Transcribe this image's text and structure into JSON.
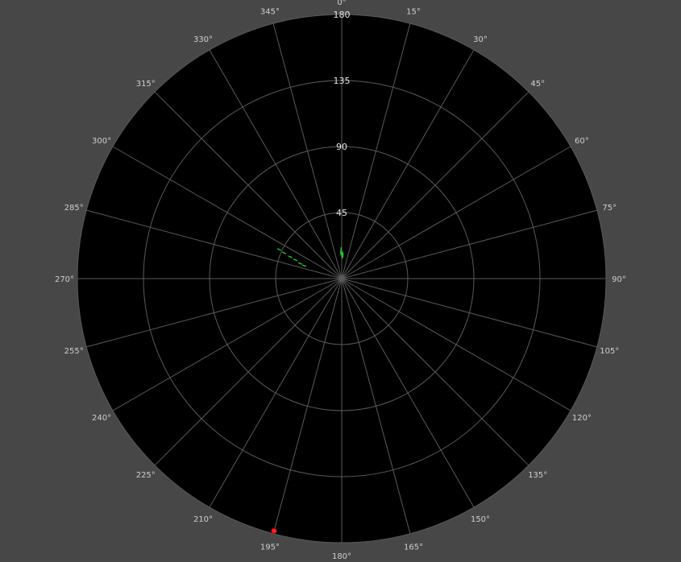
{
  "chart_data": {
    "type": "scatter",
    "coordinate_system": "polar",
    "angular_direction": "clockwise",
    "zero_angle": "top",
    "radial_ticks": [
      "45",
      "90",
      "135",
      "180"
    ],
    "radial_range": [
      0,
      180
    ],
    "angle_ticks": [
      "0°",
      "15°",
      "30°",
      "45°",
      "60°",
      "75°",
      "90°",
      "105°",
      "120°",
      "135°",
      "150°",
      "165°",
      "180°",
      "195°",
      "210°",
      "225°",
      "240°",
      "255°",
      "270°",
      "285°",
      "300°",
      "315°",
      "330°",
      "345°"
    ],
    "grid": true,
    "series": [
      {
        "color": "#22cc22",
        "marker": "dash",
        "points": [
          {
            "theta": 358,
            "r": 18
          },
          {
            "theta": 359,
            "r": 20
          },
          {
            "theta": 359,
            "r": 17
          },
          {
            "theta": 1,
            "r": 16
          },
          {
            "theta": 2,
            "r": 17
          },
          {
            "theta": 2,
            "r": 15
          },
          {
            "theta": 3,
            "r": 16
          },
          {
            "theta": 295,
            "r": 47
          },
          {
            "theta": 294,
            "r": 43
          },
          {
            "theta": 293,
            "r": 38
          },
          {
            "theta": 292,
            "r": 34
          },
          {
            "theta": 290,
            "r": 30
          },
          {
            "theta": 289,
            "r": 27
          }
        ]
      },
      {
        "color": "#ff2020",
        "marker": "circle",
        "points": [
          {
            "theta": 195,
            "r": 178
          }
        ]
      }
    ],
    "colors": {
      "background": "#474747",
      "plot_area": "#000000",
      "grid": "#5a5a5a",
      "angle_label": "#cfcfcf",
      "ring_label": "#e6e6e6"
    }
  }
}
